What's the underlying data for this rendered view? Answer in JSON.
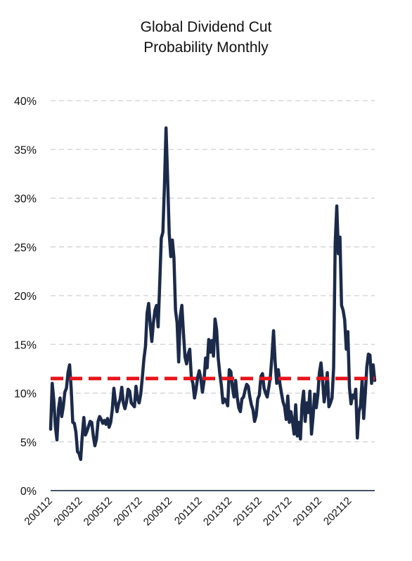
{
  "chart_data": {
    "type": "line",
    "title_lines": [
      "Global Dividend Cut",
      "Probability Monthly"
    ],
    "xlabel": "",
    "ylabel": "",
    "ylim": [
      0,
      40
    ],
    "y_ticks": [
      0,
      5,
      10,
      15,
      20,
      25,
      30,
      35,
      40
    ],
    "y_tick_labels": [
      "0%",
      "5%",
      "10%",
      "15%",
      "20%",
      "25%",
      "30%",
      "35%",
      "40%"
    ],
    "x_tick_labels": [
      "200112",
      "200312",
      "200512",
      "200712",
      "200912",
      "201112",
      "201312",
      "201512",
      "201712",
      "201912",
      "202112"
    ],
    "x_start": "200112",
    "x_end": "202308",
    "grid": "horizontal dashed",
    "legend": "none",
    "colors": {
      "series_line": "#1c2a4a",
      "average_line": "#e8141a",
      "grid": "#d0d0d0",
      "axis": "#44546a"
    },
    "series": [
      {
        "values": [
          6.3,
          11.0,
          9.3,
          6.6,
          5.2,
          8.4,
          9.5,
          7.6,
          8.6,
          10.1,
          10.5,
          12.1,
          12.9,
          10.5,
          7.0,
          6.9,
          6.0,
          4.0,
          3.8,
          3.2,
          5.6,
          7.5,
          5.7,
          6.1,
          6.6,
          7.1,
          7.0,
          5.6,
          4.6,
          5.3,
          7.1,
          7.6,
          7.3,
          6.9,
          7.2,
          6.8,
          7.4,
          6.5,
          7.0,
          8.3,
          10.5,
          9.1,
          8.1,
          8.9,
          9.4,
          10.6,
          9.0,
          8.4,
          9.1,
          10.4,
          10.2,
          9.0,
          8.8,
          8.6,
          10.7,
          9.4,
          9.0,
          9.9,
          11.6,
          13.5,
          14.8,
          18.2,
          19.2,
          17.1,
          15.3,
          17.2,
          18.5,
          19.0,
          16.8,
          21.2,
          25.9,
          26.5,
          31.3,
          37.2,
          32.0,
          26.4,
          24.0,
          25.7,
          23.9,
          18.5,
          17.2,
          13.2,
          17.9,
          19.0,
          16.2,
          13.7,
          13.0,
          14.0,
          14.5,
          11.6,
          11.0,
          9.5,
          10.4,
          11.6,
          12.3,
          11.5,
          10.1,
          11.2,
          13.6,
          12.6,
          15.5,
          14.2,
          15.4,
          13.8,
          17.6,
          16.5,
          13.6,
          12.0,
          10.8,
          9.0,
          9.4,
          9.2,
          8.7,
          12.4,
          12.2,
          10.6,
          9.6,
          11.3,
          9.6,
          8.5,
          8.1,
          9.4,
          9.6,
          10.3,
          10.9,
          10.7,
          9.6,
          8.8,
          8.3,
          7.1,
          7.7,
          9.4,
          9.8,
          11.7,
          12.0,
          10.5,
          10.0,
          9.6,
          10.6,
          11.7,
          13.8,
          16.4,
          13.2,
          11.0,
          12.4,
          11.0,
          10.0,
          9.1,
          8.6,
          7.3,
          9.7,
          7.0,
          8.1,
          7.1,
          5.8,
          8.8,
          5.6,
          7.0,
          5.3,
          8.8,
          10.2,
          7.1,
          9.0,
          8.0,
          10.2,
          5.8,
          7.6,
          9.9,
          8.5,
          9.8,
          12.1,
          13.1,
          11.4,
          9.1,
          10.2,
          12.1,
          8.6,
          9.0,
          9.5,
          12.6,
          25.4,
          29.2,
          24.3,
          26.0,
          19.0,
          18.5,
          17.5,
          14.5,
          16.3,
          10.6,
          8.9,
          9.8,
          9.5,
          10.4,
          5.4,
          8.1,
          8.7,
          11.3,
          7.4,
          9.9,
          12.7,
          14.0,
          13.9,
          11.0,
          12.9,
          11.3
        ]
      }
    ],
    "reference_lines": [
      {
        "orientation": "horizontal",
        "value": 11.5,
        "style": "dashed"
      }
    ]
  }
}
